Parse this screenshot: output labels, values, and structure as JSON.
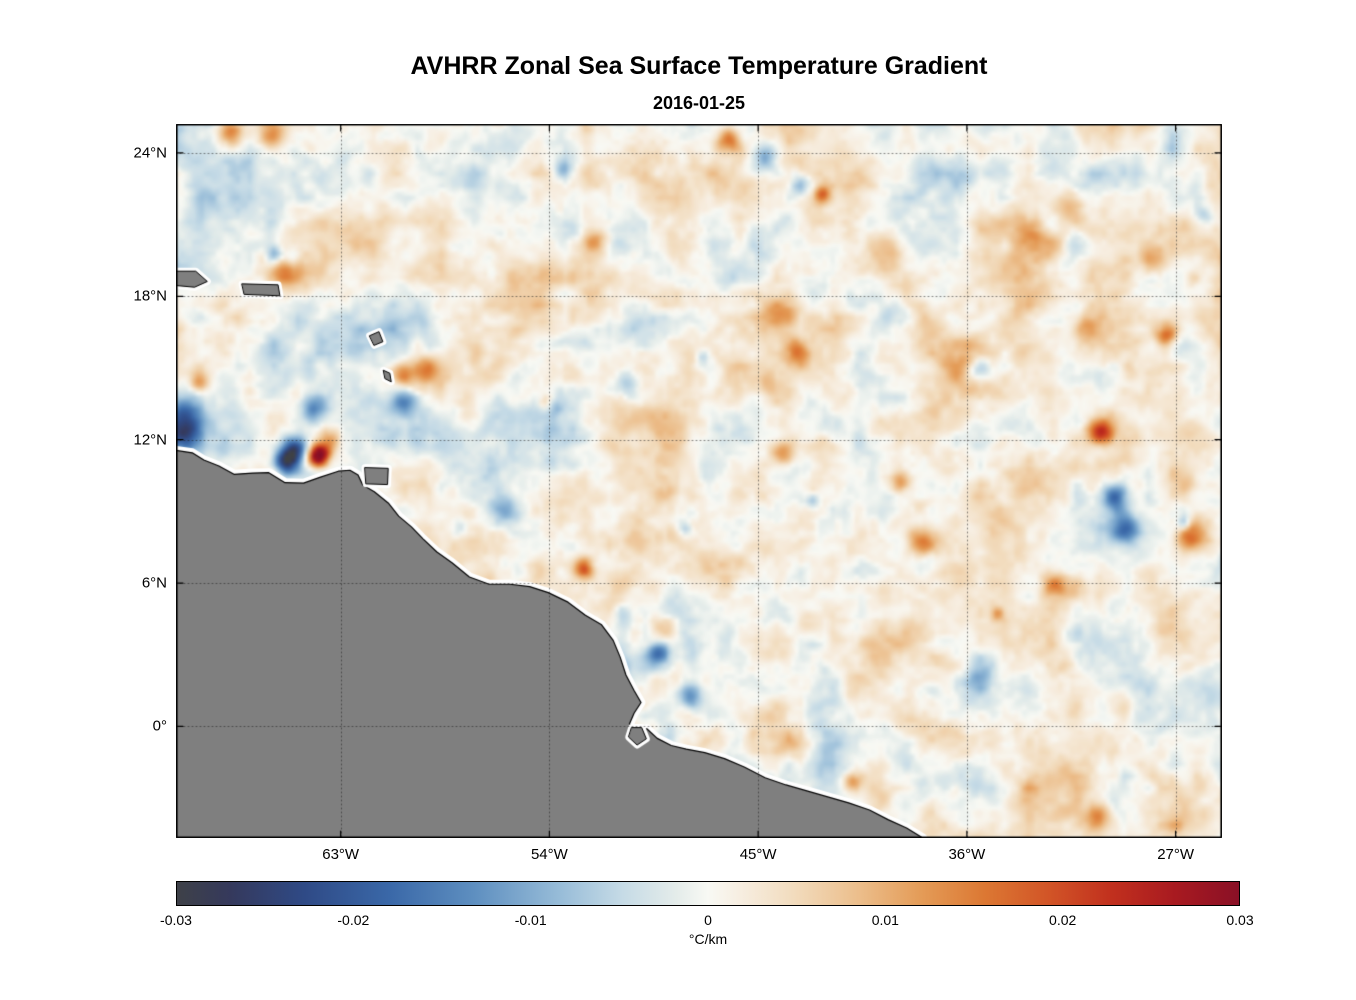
{
  "title": "AVHRR Zonal Sea Surface Temperature Gradient",
  "subtitle": "2016-01-25",
  "chart_data": {
    "type": "heatmap",
    "variable": "zonal sea surface temperature gradient",
    "units": "°C/km",
    "grid": true,
    "x_axis": {
      "tick_labels": [
        "63°W",
        "54°W",
        "45°W",
        "36°W",
        "27°W"
      ],
      "tick_lons": [
        -63,
        -54,
        -45,
        -36,
        -27
      ],
      "range_lon": [
        -70.1,
        -25.0
      ]
    },
    "y_axis": {
      "tick_labels": [
        "24°N",
        "18°N",
        "12°N",
        "6°N",
        "0°"
      ],
      "tick_lats": [
        24,
        18,
        12,
        6,
        0
      ],
      "range_lat": [
        -4.67,
        25.21
      ]
    },
    "colorbar": {
      "min": -0.03,
      "max": 0.03,
      "ticks": [
        -0.03,
        -0.02,
        -0.01,
        0,
        0.01,
        0.02,
        0.03
      ],
      "tick_labels": [
        "-0.03",
        "-0.02",
        "-0.01",
        "0",
        "0.01",
        "0.02",
        "0.03"
      ],
      "label": "°C/km",
      "stops": [
        [
          0.0,
          "#3e4148"
        ],
        [
          0.05,
          "#35395c"
        ],
        [
          0.12,
          "#2f4a86"
        ],
        [
          0.2,
          "#3a68a8"
        ],
        [
          0.28,
          "#5e8fc0"
        ],
        [
          0.36,
          "#97bcd8"
        ],
        [
          0.42,
          "#c6dbe6"
        ],
        [
          0.47,
          "#e4ecea"
        ],
        [
          0.5,
          "#f8f9f4"
        ],
        [
          0.53,
          "#f7eee1"
        ],
        [
          0.58,
          "#f2dcbe"
        ],
        [
          0.64,
          "#ecbf8d"
        ],
        [
          0.7,
          "#e49c58"
        ],
        [
          0.76,
          "#dc7833"
        ],
        [
          0.82,
          "#d25527"
        ],
        [
          0.88,
          "#c1301e"
        ],
        [
          0.94,
          "#a81a20"
        ],
        [
          1.0,
          "#8a1026"
        ]
      ]
    },
    "land_color": "#7f7f7f",
    "coast_gap_color": "#ffffff",
    "noise": {
      "seed": 7,
      "base_amplitude": 0.013
    },
    "coastline": [
      [
        -70.1,
        11.55
      ],
      [
        -69.4,
        11.45
      ],
      [
        -68.9,
        11.15
      ],
      [
        -68.25,
        10.9
      ],
      [
        -67.6,
        10.55
      ],
      [
        -66.8,
        10.6
      ],
      [
        -66.1,
        10.62
      ],
      [
        -65.4,
        10.2
      ],
      [
        -64.6,
        10.18
      ],
      [
        -63.9,
        10.42
      ],
      [
        -63.1,
        10.68
      ],
      [
        -62.6,
        10.72
      ],
      [
        -62.25,
        10.52
      ],
      [
        -62.05,
        10.1
      ],
      [
        -61.55,
        9.82
      ],
      [
        -60.95,
        9.35
      ],
      [
        -60.5,
        8.8
      ],
      [
        -59.95,
        8.35
      ],
      [
        -59.45,
        7.85
      ],
      [
        -58.85,
        7.3
      ],
      [
        -58.2,
        6.85
      ],
      [
        -57.45,
        6.25
      ],
      [
        -56.6,
        5.95
      ],
      [
        -55.7,
        5.95
      ],
      [
        -54.85,
        5.85
      ],
      [
        -54.05,
        5.6
      ],
      [
        -53.2,
        5.2
      ],
      [
        -52.45,
        4.65
      ],
      [
        -51.75,
        4.25
      ],
      [
        -51.25,
        3.6
      ],
      [
        -50.95,
        2.9
      ],
      [
        -50.7,
        2.15
      ],
      [
        -50.35,
        1.5
      ],
      [
        -50.05,
        1.0
      ],
      [
        -50.35,
        0.55
      ],
      [
        -50.55,
        0.1
      ],
      [
        -50.3,
        -0.25
      ],
      [
        -49.8,
        -0.1
      ],
      [
        -49.35,
        -0.5
      ],
      [
        -48.75,
        -0.8
      ],
      [
        -48.1,
        -0.95
      ],
      [
        -47.3,
        -1.1
      ],
      [
        -46.45,
        -1.35
      ],
      [
        -45.6,
        -1.7
      ],
      [
        -44.7,
        -2.15
      ],
      [
        -43.8,
        -2.45
      ],
      [
        -42.9,
        -2.7
      ],
      [
        -42.0,
        -2.95
      ],
      [
        -41.1,
        -3.2
      ],
      [
        -40.2,
        -3.5
      ],
      [
        -39.4,
        -3.9
      ],
      [
        -38.6,
        -4.25
      ],
      [
        -37.9,
        -4.67
      ]
    ],
    "islands": [
      {
        "name": "hispaniola",
        "points": [
          [
            -70.1,
            19.05
          ],
          [
            -69.25,
            19.05
          ],
          [
            -68.75,
            18.62
          ],
          [
            -69.3,
            18.38
          ],
          [
            -70.1,
            18.45
          ]
        ]
      },
      {
        "name": "puerto-rico",
        "points": [
          [
            -67.25,
            18.52
          ],
          [
            -65.7,
            18.48
          ],
          [
            -65.62,
            18.02
          ],
          [
            -67.15,
            18.08
          ]
        ]
      },
      {
        "name": "guadeloupe",
        "points": [
          [
            -61.75,
            16.35
          ],
          [
            -61.35,
            16.52
          ],
          [
            -61.18,
            16.1
          ],
          [
            -61.55,
            15.95
          ]
        ]
      },
      {
        "name": "martinique",
        "points": [
          [
            -61.15,
            14.9
          ],
          [
            -60.88,
            14.78
          ],
          [
            -60.82,
            14.42
          ],
          [
            -61.08,
            14.55
          ]
        ]
      },
      {
        "name": "trinidad",
        "points": [
          [
            -61.95,
            10.83
          ],
          [
            -60.95,
            10.8
          ],
          [
            -60.98,
            10.12
          ],
          [
            -61.9,
            10.15
          ]
        ]
      },
      {
        "name": "marajo",
        "points": [
          [
            -50.45,
            -0.05
          ],
          [
            -50.02,
            -0.05
          ],
          [
            -49.82,
            -0.52
          ],
          [
            -50.22,
            -0.78
          ],
          [
            -50.58,
            -0.45
          ]
        ]
      }
    ],
    "notable_features": [
      {
        "lon": -69.9,
        "lat": 12.3,
        "amp": -0.022,
        "r": 0.9
      },
      {
        "lon": -69.6,
        "lat": 13.1,
        "amp": -0.01,
        "r": 0.8
      },
      {
        "lon": -65.3,
        "lat": 11.15,
        "amp": -0.03,
        "r": 0.55
      },
      {
        "lon": -64.9,
        "lat": 11.7,
        "amp": -0.018,
        "r": 0.5
      },
      {
        "lon": -63.95,
        "lat": 11.3,
        "amp": 0.036,
        "r": 0.45
      },
      {
        "lon": -63.5,
        "lat": 11.9,
        "amp": 0.012,
        "r": 0.6
      },
      {
        "lon": -67.8,
        "lat": 24.9,
        "amp": 0.018,
        "r": 0.6
      },
      {
        "lon": -46.3,
        "lat": 24.6,
        "amp": 0.016,
        "r": 0.5
      },
      {
        "lon": -43.2,
        "lat": 22.6,
        "amp": -0.012,
        "r": 0.6
      },
      {
        "lon": -30.2,
        "lat": 12.35,
        "amp": 0.022,
        "r": 0.55
      },
      {
        "lon": -29.6,
        "lat": 9.6,
        "amp": -0.02,
        "r": 0.6
      },
      {
        "lon": -29.2,
        "lat": 8.3,
        "amp": -0.018,
        "r": 0.7
      },
      {
        "lon": -27.4,
        "lat": 16.4,
        "amp": 0.018,
        "r": 0.5
      },
      {
        "lon": -26.3,
        "lat": 8.0,
        "amp": 0.016,
        "r": 0.7
      },
      {
        "lon": -52.55,
        "lat": 6.6,
        "amp": 0.016,
        "r": 0.45
      },
      {
        "lon": -49.3,
        "lat": 3.1,
        "amp": -0.016,
        "r": 0.5
      },
      {
        "lon": -47.9,
        "lat": 1.3,
        "amp": -0.014,
        "r": 0.5
      },
      {
        "lon": -38.8,
        "lat": 10.3,
        "amp": 0.014,
        "r": 0.5
      },
      {
        "lon": -56.0,
        "lat": 9.0,
        "amp": -0.012,
        "r": 0.7
      },
      {
        "lon": -60.3,
        "lat": 13.6,
        "amp": -0.012,
        "r": 0.6
      },
      {
        "lon": -33.0,
        "lat": 20.5,
        "amp": 0.01,
        "r": 0.9
      },
      {
        "lon": -36.5,
        "lat": 15.0,
        "amp": 0.009,
        "r": 0.9
      }
    ]
  }
}
